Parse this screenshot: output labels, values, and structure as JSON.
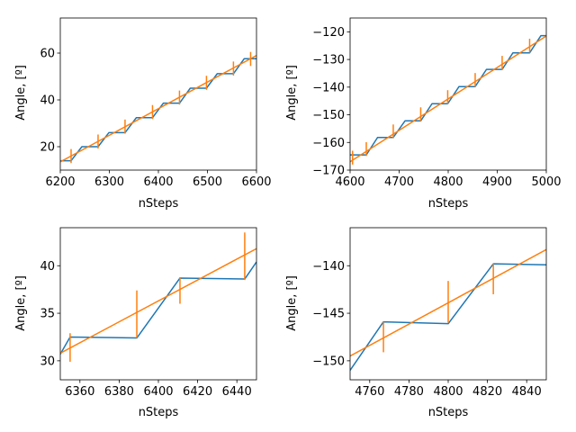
{
  "chart_data": [
    {
      "type": "line",
      "xlabel": "nSteps",
      "ylabel": "Angle, [º]",
      "xlim": [
        6200,
        6600
      ],
      "ylim": [
        10,
        75
      ],
      "xticks": [
        6200,
        6300,
        6400,
        6500,
        6600
      ],
      "yticks": [
        20,
        40,
        60
      ],
      "grid": false,
      "series": [
        {
          "color": "#1f77b4",
          "style": "line",
          "x": [
            6200,
            6222,
            6244,
            6277,
            6299,
            6332,
            6355,
            6388,
            6410,
            6443,
            6465,
            6498,
            6520,
            6553,
            6575,
            6600
          ],
          "y": [
            14,
            14,
            20,
            20,
            26,
            26,
            32.4,
            32.4,
            38.6,
            38.6,
            45,
            45,
            51.2,
            51.2,
            57.6,
            57.6
          ]
        },
        {
          "color": "#ff7f0e",
          "style": "line",
          "x": [
            6200,
            6600
          ],
          "y": [
            13.5,
            59
          ]
        },
        {
          "color": "#ff7f0e",
          "style": "errorbar",
          "x": [
            6222,
            6277,
            6332,
            6388,
            6443,
            6498,
            6553,
            6588
          ],
          "y": [
            16,
            22.2,
            28.6,
            34.8,
            41,
            47.3,
            53.4,
            57.5
          ],
          "err": [
            3,
            3,
            3,
            3,
            3,
            3,
            3,
            3
          ]
        }
      ]
    },
    {
      "type": "line",
      "xlabel": "nSteps",
      "ylabel": "Angle, [º]",
      "xlim": [
        4600,
        5000
      ],
      "ylim": [
        -170,
        -115
      ],
      "xticks": [
        4600,
        4700,
        4800,
        4900,
        5000
      ],
      "yticks": [
        -170,
        -160,
        -150,
        -140,
        -130,
        -120
      ],
      "grid": false,
      "series": [
        {
          "color": "#1f77b4",
          "style": "line",
          "x": [
            4600,
            4633,
            4656,
            4688,
            4712,
            4744,
            4767,
            4799,
            4822,
            4855,
            4878,
            4910,
            4932,
            4966,
            4989,
            5000
          ],
          "y": [
            -164.5,
            -164.5,
            -158.2,
            -158.2,
            -152.2,
            -152.2,
            -146,
            -146,
            -139.8,
            -139.8,
            -133.6,
            -133.6,
            -127.6,
            -127.6,
            -121.4,
            -121.4
          ]
        },
        {
          "color": "#ff7f0e",
          "style": "line",
          "x": [
            4600,
            5000
          ],
          "y": [
            -167,
            -121.5
          ]
        },
        {
          "color": "#ff7f0e",
          "style": "errorbar",
          "x": [
            4605,
            4633,
            4688,
            4744,
            4799,
            4855,
            4910,
            4966
          ],
          "y": [
            -165.5,
            -162.4,
            -156,
            -149.8,
            -143.6,
            -137.4,
            -131.2,
            -125
          ],
          "err": [
            2.5,
            2.5,
            2.5,
            2.5,
            2.5,
            2.5,
            2.5,
            2.5
          ]
        }
      ]
    },
    {
      "type": "line",
      "xlabel": "nSteps",
      "ylabel": "Angle, [º]",
      "xlim": [
        6350,
        6450
      ],
      "ylim": [
        28,
        44
      ],
      "xticks": [
        6360,
        6380,
        6400,
        6420,
        6440
      ],
      "yticks": [
        30,
        35,
        40
      ],
      "grid": false,
      "series": [
        {
          "color": "#1f77b4",
          "style": "line",
          "x": [
            6350,
            6355,
            6389,
            6411,
            6444,
            6450
          ],
          "y": [
            30.7,
            32.5,
            32.4,
            38.7,
            38.6,
            40.4
          ]
        },
        {
          "color": "#ff7f0e",
          "style": "line",
          "x": [
            6350,
            6450
          ],
          "y": [
            30.8,
            41.8
          ]
        },
        {
          "color": "#ff7f0e",
          "style": "errorbar",
          "x": [
            6355,
            6389,
            6411,
            6444
          ],
          "y": [
            31.4,
            34.9,
            37.4,
            41
          ],
          "err": [
            1.5,
            2.5,
            1.4,
            2.5
          ]
        }
      ]
    },
    {
      "type": "line",
      "xlabel": "nSteps",
      "ylabel": "Angle, [º]",
      "xlim": [
        4750,
        4850
      ],
      "ylim": [
        -152,
        -136
      ],
      "xticks": [
        4760,
        4780,
        4800,
        4820,
        4840
      ],
      "yticks": [
        -150,
        -145,
        -140
      ],
      "grid": false,
      "series": [
        {
          "color": "#1f77b4",
          "style": "line",
          "x": [
            4750,
            4767,
            4800,
            4823,
            4850
          ],
          "y": [
            -151,
            -145.9,
            -146.1,
            -139.8,
            -139.9
          ]
        },
        {
          "color": "#ff7f0e",
          "style": "line",
          "x": [
            4750,
            4850
          ],
          "y": [
            -149.5,
            -138.3
          ]
        },
        {
          "color": "#ff7f0e",
          "style": "errorbar",
          "x": [
            4767,
            4800,
            4823
          ],
          "y": [
            -147.5,
            -143.8,
            -141.4
          ],
          "err": [
            1.6,
            2.2,
            1.6
          ]
        }
      ]
    }
  ]
}
